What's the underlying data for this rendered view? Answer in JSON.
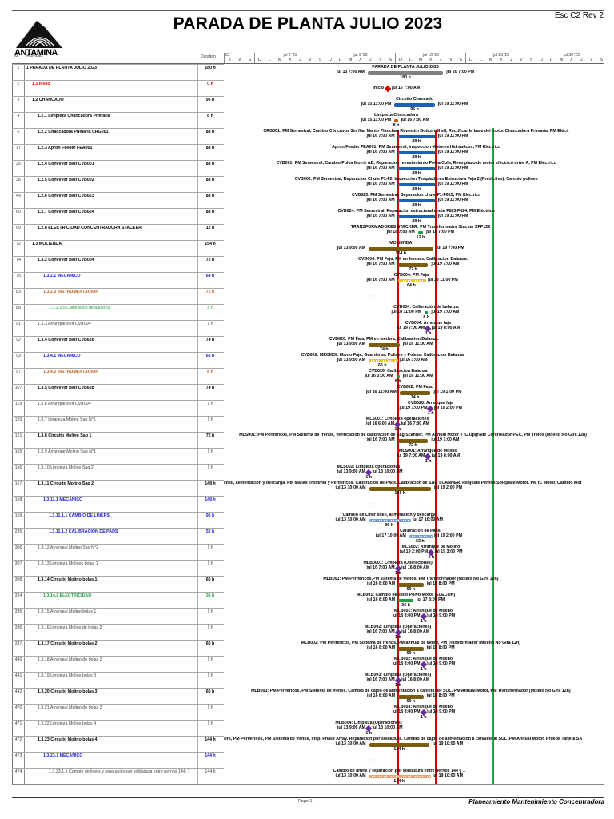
{
  "header": {
    "title": "PARADA DE PLANTA JULIO 2023",
    "revision": "Esc C2 Rev 2",
    "logo_text": "ANTAMINA"
  },
  "columns": {
    "id": "Id",
    "activity": "Actividad",
    "duration": "Duration"
  },
  "timescale": {
    "first_day": "jun 29",
    "groups": [
      {
        "label": "23",
        "days": [
          "J",
          "V",
          "S"
        ]
      },
      {
        "label": "jul 2 '23",
        "days": [
          "D",
          "L",
          "M",
          "X",
          "J",
          "V",
          "S"
        ]
      },
      {
        "label": "jul 9 '23",
        "days": [
          "D",
          "L",
          "M",
          "X",
          "J",
          "V",
          "S"
        ]
      },
      {
        "label": "jul 16 '23",
        "days": [
          "D",
          "L",
          "M",
          "X",
          "J",
          "V",
          "S"
        ]
      },
      {
        "label": "jul 23 '23",
        "days": [
          "D",
          "L",
          "M",
          "X",
          "J",
          "V",
          "S"
        ]
      },
      {
        "label": "jul 30 '23",
        "days": [
          "D",
          "L",
          "M",
          "X",
          "J",
          "V",
          "S"
        ]
      }
    ]
  },
  "colors": {
    "red": "#d40000",
    "blue": "#1f5fb0",
    "olive": "#7a5c10",
    "grey": "#808080",
    "green": "#20a040",
    "orange": "#c06020",
    "purple": "#6a2a9a",
    "yellow": "#f0c030",
    "light_blue": "#7aa0e0",
    "light_orange": "#f0a070"
  },
  "rows": [
    {
      "id": "1",
      "name": "1 PARADA DE PLANTA JULIO 2023",
      "duration": "180 h",
      "bold": true,
      "color": "#000",
      "indent": 0,
      "bar": {
        "label": "PARADA DE PLANTA JULIO 2023",
        "start": "jul 13 7:00 AM",
        "end": "jul 20 7:00 PM",
        "dur": "180 h",
        "kind": "summary",
        "color": "#808080"
      }
    },
    {
      "id": "2",
      "name": "1.1 Inicio",
      "duration": "0 h",
      "bold": true,
      "color": "#d40000",
      "indent": 1,
      "bar": {
        "label": "Inicio",
        "start": "jul 15 7:00 AM",
        "end": "",
        "dur": "",
        "kind": "milestone",
        "color": "#d40000"
      }
    },
    {
      "id": "3",
      "name": "1.2 CHANCADO",
      "duration": "96 h",
      "bold": true,
      "color": "#000",
      "indent": 1,
      "bar": {
        "label": "Circuito Chancado",
        "start": "jul 15 11:00 PM",
        "end": "jul 19 11:00 PM",
        "dur": "96 h",
        "kind": "summary",
        "color": "#1f5fb0"
      }
    },
    {
      "id": "4",
      "name": "1.2.1 Limpieza Chancadora Primaria",
      "duration": "8 h",
      "bold": true,
      "color": "#000",
      "indent": 2,
      "bar": {
        "label": "Limpieza Chancadora",
        "start": "jul 15 11:00 PM",
        "end": "jul 16 7:00 AM",
        "dur": "8 h",
        "kind": "task",
        "color": "#c06020"
      }
    },
    {
      "id": "6",
      "name": "1.2.2   Chancadora Primaria CRG001",
      "duration": "88 h",
      "bold": true,
      "color": "#000",
      "indent": 2,
      "bar": {
        "label": "CRG001: PM Semestral, Cambio Cóncavos 3er fila, Manto Planchas Revestim Bottom Shell, Rectificar la base del motor Chancadora Primaria. PM Eléctr",
        "start": "jul 16 7:00 AM",
        "end": "jul 19 11:00 PM",
        "dur": "88 h",
        "kind": "task",
        "color": "#1f5fb0"
      }
    },
    {
      "id": "17",
      "name": "1.2.3 Apron Feeder FEA001",
      "duration": "88 h",
      "bold": true,
      "color": "#000",
      "indent": 2,
      "bar": {
        "label": "Apron Feeder FEA001: PM Semestral, Inspeccion Motores Hidraulicos, PM Eléctrico",
        "start": "jul 16 7:00 AM",
        "end": "jul 19 11:00 PM",
        "dur": "88 h",
        "kind": "task",
        "color": "#1f5fb0"
      }
    },
    {
      "id": "25",
      "name": "1.2.4 Conveyor Belt CVB001",
      "duration": "88 h",
      "bold": true,
      "color": "#000",
      "indent": 2,
      "bar": {
        "label": "CVB001: PM Semestral,  Cambio Polea Motriz AB, Reparacion revestimiento Polea Cola, Reemplazo de motor eléctrico drive A, PM Eléctrico",
        "start": "jul 16 7:00 AM",
        "end": "jul 19 11:00 PM",
        "dur": "88 h",
        "kind": "task",
        "color": "#1f5fb0"
      }
    },
    {
      "id": "38",
      "name": "1.2.5 Conveyor Belt CVB002",
      "duration": "88 h",
      "bold": true,
      "color": "#000",
      "indent": 2,
      "bar": {
        "label": "CVB002: PM Semestral, Reparacion Chute F1-F2, Inspeccion Templadores Estructura Faja 2 (Predictivo), Cambio polines",
        "start": "jul 16 7:00 AM",
        "end": "jul 19 11:00 PM",
        "dur": "88 h",
        "kind": "task",
        "color": "#1f5fb0"
      }
    },
    {
      "id": "49",
      "name": "1.2.6 Conveyor Belt CVB623",
      "duration": "88 h",
      "bold": true,
      "color": "#000",
      "indent": 2,
      "bar": {
        "label": "CVB623: PM Semestral, Separacion chute F1-F623, PM Eléctrico",
        "start": "jul 16 7:00 AM",
        "end": "jul 19 11:00 PM",
        "dur": "88 h",
        "kind": "task",
        "color": "#1f5fb0"
      }
    },
    {
      "id": "60",
      "name": "1.2.7 Conveyor Belt CVB624",
      "duration": "88 h",
      "bold": true,
      "color": "#000",
      "indent": 2,
      "bar": {
        "label": "CVB624: PM Semestral, Reparacion estructural chute F623-F624, PM Eléctrico",
        "start": "jul 16 7:00 AM",
        "end": "jul 19 11:00 PM",
        "dur": "88 h",
        "kind": "task",
        "color": "#1f5fb0"
      }
    },
    {
      "id": "69",
      "name": "1.2.8 ELECTRICIDAD CONCENTRADORA STACKER",
      "duration": "12 h",
      "bold": true,
      "color": "#000",
      "indent": 2,
      "bar": {
        "label": "TRANSFORMADORES STACKER: PM Transformador Stacker XFP126",
        "start": "jul 18 7:00 AM",
        "end": "jul 18 7:00 PM",
        "dur": "12 h",
        "kind": "task",
        "color": "#20a040"
      }
    },
    {
      "id": "72",
      "name": "1.3 MOLIENDA",
      "duration": "154 h",
      "bold": true,
      "color": "#000",
      "indent": 1,
      "bar": {
        "label": "MOLIENDA",
        "start": "jul 13 9:00 AM",
        "end": "jul 19 7:00 PM",
        "dur": "154 h",
        "kind": "summary",
        "color": "#7a5c10"
      }
    },
    {
      "id": "74",
      "name": "1.3.2 Conveyor Belt CVB004",
      "duration": "72 h",
      "bold": true,
      "color": "#000",
      "indent": 2,
      "bar": {
        "label": "CVB004: PM Faja, PM en feeders, Calibracion Balanza.",
        "start": "jul 16 7:00 AM",
        "end": "jul 19 7:00 AM",
        "dur": "72 h",
        "kind": "summary",
        "color": "#7a5c10"
      }
    },
    {
      "id": "75",
      "name": "1.3.2.1 MECANICO",
      "duration": "64 h",
      "bold": true,
      "color": "#2020d0",
      "indent": 3,
      "bar": {
        "label": "CVB004: PM Faja",
        "start": "jul 16 7:00 AM",
        "end": "jul 18 11:00 PM",
        "dur": "64 h",
        "kind": "hatched",
        "color": "#f0c030"
      }
    },
    {
      "id": "83",
      "name": "1.3.2.3 INSTRUMENTACION",
      "duration": "72 h",
      "bold": true,
      "color": "#c06020",
      "indent": 3,
      "bar": null
    },
    {
      "id": "88",
      "name": "1.3.2.3.5 Calibración de balanza",
      "duration": "8 h",
      "bold": false,
      "color": "#20a040",
      "indent": 4,
      "bar": {
        "label": "CVB004: Calibración de balanza.",
        "start": "jul 18 11:00 PM",
        "end": "jul 19 7:00 AM",
        "dur": "8 h",
        "kind": "task",
        "color": "#20a040"
      }
    },
    {
      "id": "91",
      "name": "1.3.3 Arranque Belt CVB004",
      "duration": "1 h",
      "bold": false,
      "color": "#444",
      "indent": 2,
      "bar": {
        "label": "CVB004: Arranque faja",
        "start": "jul 19 7:00 AM",
        "end": "jul 19 8:00 AM",
        "dur": "1 h",
        "kind": "milestone",
        "color": "#6a2a9a"
      }
    },
    {
      "id": "92",
      "name": "1.3.4 Conveyor Belt CVB626",
      "duration": "74 h",
      "bold": true,
      "color": "#000",
      "indent": 2,
      "bar": {
        "label": "CVB626: PM Faja, PM en feeders, Calibracion Balanza.",
        "start": "jul 13 9:00 AM",
        "end": "jul 16 11:00 AM",
        "dur": "74 h",
        "kind": "summary",
        "color": "#7a5c10"
      }
    },
    {
      "id": "93",
      "name": "1.3.4.1 MECANICO",
      "duration": "66 h",
      "bold": true,
      "color": "#2020d0",
      "indent": 3,
      "bar": {
        "label": "CVB626: MECMOL Manto Faja, Guarderas, Polines y Poleas. Calibracion Balanza",
        "start": "jul 13 9:00 AM",
        "end": "jul 16 3:00 AM",
        "dur": "66 h",
        "kind": "hatched",
        "color": "#f0c030"
      }
    },
    {
      "id": "97",
      "name": "1.3.4.2 INSTRUMENTACION",
      "duration": "8 h",
      "bold": true,
      "color": "#c06020",
      "indent": 3,
      "bar": {
        "label": "CVB626: Calibracion Balanza",
        "start": "jul 16 3:00 AM",
        "end": "jul 16 11:00 AM",
        "dur": "8 h",
        "kind": "task",
        "color": "#20a040"
      }
    },
    {
      "id": "107",
      "name": "1.3.5 Conveyor Belt CVB628",
      "duration": "74 h",
      "bold": true,
      "color": "#000",
      "indent": 2,
      "bar": {
        "label": "CVB628: PM Faja.",
        "start": "jul 16 11:00 AM",
        "end": "jul 19 1:00 PM",
        "dur": "74 h",
        "kind": "summary",
        "color": "#7a5c10"
      }
    },
    {
      "id": "119",
      "name": "1.3.6 Arranque Belt CVB004",
      "duration": "1 h",
      "bold": false,
      "color": "#444",
      "indent": 2,
      "bar": {
        "label": "CVB628: Arranque faja",
        "start": "jul 19 1:00 PM",
        "end": "jul 19 2:00 PM",
        "dur": "1 h",
        "kind": "milestone",
        "color": "#6a2a9a"
      }
    },
    {
      "id": "120",
      "name": "1.3.7 Limpieza Molino Sag N°1",
      "duration": "1 h",
      "bold": false,
      "color": "#444",
      "indent": 2,
      "bar": {
        "label": "MLS001: Limpieza operaciones",
        "start": "jul 16 6:00 AM",
        "end": "jul 16 7:00 AM",
        "dur": "1 h",
        "kind": "milestone",
        "color": "#6a2a9a"
      }
    },
    {
      "id": "121",
      "name": "1.3.8 Circuito Molino Sag 1",
      "duration": "72 h",
      "bold": true,
      "color": "#000",
      "indent": 2,
      "bar": {
        "label": "MLS001: PM Perifericos, PM Sistema de frenos, Verificación de calibración de Sag Scanner. PM Annual Motor e IC.Upgrade Controlador PEC, PM Trafos (Molino No Gira 12h)",
        "start": "jul 16 7:00 AM",
        "end": "jul 19 7:00 AM",
        "dur": "72 h",
        "kind": "summary",
        "color": "#7a5c10"
      }
    },
    {
      "id": "165",
      "name": "1.3.9 Arranque Molino Sag N°1",
      "duration": "1 h",
      "bold": false,
      "color": "#444",
      "indent": 2,
      "bar": {
        "label": "MLS001: Arranque de Molino",
        "start": "jul 19 7:00 AM",
        "end": "jul 19 8:00 AM",
        "dur": "1 h",
        "kind": "milestone",
        "color": "#6a2a9a"
      }
    },
    {
      "id": "166",
      "name": "1.3.10 Limpieza Molino Sag 2",
      "duration": "1 h",
      "bold": false,
      "color": "#444",
      "indent": 2,
      "bar": {
        "label": "MLS002: Limpieza operaciones",
        "start": "jul 13 9:00 AM",
        "end": "jul 13 10:00 AM",
        "dur": "1 h",
        "kind": "milestone",
        "color": "#6a2a9a"
      }
    },
    {
      "id": "167",
      "name": "1.3.11 Circuito Molino Sag 2",
      "duration": "148 h",
      "bold": true,
      "color": "#000",
      "indent": 2,
      "bar": {
        "label": "rs shell, alimentacion y descarga. PM Mallas Trommel y Perifericos. Calibración de Pads. Calibración de SAG SCANNER. Reajuste Pernos Soleplate Motor. PM IC Motor. Cambio Mot",
        "start": "jul 13 10:00 AM",
        "end": "jul 19 2:00 PM",
        "dur": "148 h",
        "kind": "summary",
        "color": "#7a5c10"
      }
    },
    {
      "id": "168",
      "name": "1.3.11.1  MECANICO",
      "duration": "148 h",
      "bold": true,
      "color": "#2020d0",
      "indent": 3,
      "bar": null
    },
    {
      "id": "169",
      "name": "1.3.11.1.1 CAMBIO DE LINERS",
      "duration": "96 h",
      "bold": true,
      "color": "#2020d0",
      "indent": 4,
      "bar": {
        "label": "Cambio de Liner shell, alimetación y descarga",
        "start": "jul 13 10:00 AM",
        "end": "jul 17 10:00 AM",
        "dur": "96 h",
        "kind": "hatched",
        "color": "#7aa0e0"
      }
    },
    {
      "id": "235",
      "name": "1.3.11.1.2 CALIBRACION DE PADS",
      "duration": "52 h",
      "bold": true,
      "color": "#2020d0",
      "indent": 4,
      "bar": {
        "label": "Calibración de Pads",
        "start": "jul 17 10:00 AM",
        "end": "jul 19 2:00 PM",
        "dur": "52 h",
        "kind": "hatched",
        "color": "#7aa0e0"
      }
    },
    {
      "id": "306",
      "name": "1.3.12 Arranque Molino Sag N°2",
      "duration": "1 h",
      "bold": false,
      "color": "#444",
      "indent": 2,
      "bar": {
        "label": "MLS002: Arranque de Molino",
        "start": "jul 19 2:00 PM",
        "end": "jul 19 3:00 PM",
        "dur": "1 h",
        "kind": "milestone",
        "color": "#6a2a9a"
      }
    },
    {
      "id": "307",
      "name": "1.3.13 Limpieza Molinos bolas 1",
      "duration": "1 h",
      "bold": false,
      "color": "#444",
      "indent": 2,
      "bar": {
        "label": "MLB0001: Limpieza (Operaciones)",
        "start": "jul 16 7:00 AM",
        "end": "jul 16 8:00 AM",
        "dur": "1 h",
        "kind": "milestone",
        "color": "#6a2a9a"
      }
    },
    {
      "id": "308",
      "name": "1.3.14 Circuito Molino bolas 1",
      "duration": "60 h",
      "bold": true,
      "color": "#000",
      "indent": 2,
      "bar": {
        "label": "MLB001: PM Perifericos,PM sistema de frenos. PM Transformador (Molino No Gira 12h)",
        "start": "jul 16 8:00 AM",
        "end": "jul 18 8:00 PM",
        "dur": "60 h",
        "kind": "summary",
        "color": "#7a5c10"
      }
    },
    {
      "id": "324",
      "name": "1.3.14.2   ELECTRICIDAD",
      "duration": "36 h",
      "bold": true,
      "color": "#20a040",
      "indent": 3,
      "bar": {
        "label": "MLB001: Cambio de sello Polvo Motor (ELECON)",
        "start": "jul 16 8:00 AM",
        "end": "jul 17 8:00 PM",
        "dur": "36 h",
        "kind": "task",
        "color": "#20a040"
      }
    },
    {
      "id": "335",
      "name": "1.3.15 Arranque Molino bolas 1",
      "duration": "1 h",
      "bold": false,
      "color": "#444",
      "indent": 2,
      "bar": {
        "label": "MLB001: Arranque de Molino",
        "start": "jul 18 8:00 PM",
        "end": "jul 18 9:00 PM",
        "dur": "1 h",
        "kind": "milestone",
        "color": "#6a2a9a"
      }
    },
    {
      "id": "336",
      "name": "1.3.16 Limpieza Molino de bolas 2",
      "duration": "1 h",
      "bold": false,
      "color": "#444",
      "indent": 2,
      "bar": {
        "label": "MLB002: Limpieza (Operaciones)",
        "start": "jul 16 7:00 AM",
        "end": "jul 16 8:00 AM",
        "dur": "1 h",
        "kind": "milestone",
        "color": "#6a2a9a"
      }
    },
    {
      "id": "337",
      "name": "1.3.17 Circuito Molino bolas 2",
      "duration": "60 h",
      "bold": true,
      "color": "#000",
      "indent": 2,
      "bar": {
        "label": "MLB002: PM Perifericos, PM Sistema de frenos, PM annual de Motor, PM Transformador (Molino No Gira 12h)",
        "start": "jul 16 8:00 AM",
        "end": "jul 18 8:00 PM",
        "dur": "60 h",
        "kind": "summary",
        "color": "#7a5c10"
      }
    },
    {
      "id": "440",
      "name": "1.3.18 Arranque Molino de bolas 2",
      "duration": "1 h",
      "bold": false,
      "color": "#444",
      "indent": 2,
      "bar": {
        "label": "MLB002: Arranque de Molino",
        "start": "jul 18 8:00 PM",
        "end": "jul 18 9:00 PM",
        "dur": "1 h",
        "kind": "milestone",
        "color": "#6a2a9a"
      }
    },
    {
      "id": "441",
      "name": "1.3.19 Limpieza Molino bolas 3",
      "duration": "1 h",
      "bold": false,
      "color": "#444",
      "indent": 2,
      "bar": {
        "label": "MLB003: Limpieza (Operaciones)",
        "start": "jul 16 7:00 AM",
        "end": "jul 16 8:00 AM",
        "dur": "1 h",
        "kind": "milestone",
        "color": "#6a2a9a"
      }
    },
    {
      "id": "442",
      "name": "1.3.20 Circuito Molino bolas 3",
      "duration": "60 h",
      "bold": true,
      "color": "#000",
      "indent": 2,
      "bar": {
        "label": "MLB003: PM Perifericos, PM Sistema de frenos. Cambio de cajón de alimentación a canleta del SUL. PM Annual Motor, PM Transformador (Molino No Gira 12h)",
        "start": "jul 16 8:00 AM",
        "end": "jul 18 8:00 PM",
        "dur": "60 h",
        "kind": "summary",
        "color": "#7a5c10"
      }
    },
    {
      "id": "470",
      "name": "1.3.21 Arranque Molino de bolas 3",
      "duration": "1 h",
      "bold": false,
      "color": "#444",
      "indent": 2,
      "bar": {
        "label": "MLB003: Arranque de Molino",
        "start": "jul 18 8:00 PM",
        "end": "jul 18 9:00 PM",
        "dur": "1 h",
        "kind": "milestone",
        "color": "#6a2a9a"
      }
    },
    {
      "id": "471",
      "name": "1.3.22 Limpieza Molino bolas 4",
      "duration": "1 h",
      "bold": false,
      "color": "#444",
      "indent": 2,
      "bar": {
        "label": "MLB004: Limpieza (Operaciones)",
        "start": "jul 13 9:00 AM",
        "end": "jul 13 10:00 AM",
        "dur": "1 h",
        "kind": "milestone",
        "color": "#6a2a9a"
      }
    },
    {
      "id": "472",
      "name": "1.3.23 Circuito Molino bolas 4",
      "duration": "144 h",
      "bold": true,
      "color": "#000",
      "indent": 2,
      "bar": {
        "label": "e liners, PM Perifericos, PM Sistema de frenos, Insp. Phase Array. Reparación por soldadura. Cambio de cajón de alimentación a canaleta al SUL .PM Annual Motor. Prueba Tarjeta SA",
        "start": "jul 13 10:00 AM",
        "end": "jul 19 10:00 AM",
        "dur": "144 h",
        "kind": "summary",
        "color": "#7a5c10"
      }
    },
    {
      "id": "473",
      "name": "1.3.23.1       MECANICO",
      "duration": "144 h",
      "bold": true,
      "color": "#2020d0",
      "indent": 3,
      "bar": null
    },
    {
      "id": "474",
      "name": "1.3.23.1.1 Cambio de liners y reparación por soldadura entre pernos 144, 1",
      "duration": "144 h",
      "bold": false,
      "color": "#444",
      "indent": 4,
      "bar": {
        "label": "Cambio de liners y reparación por soldadura entre pernos 144 y 1",
        "start": "jul 13 10:00 AM",
        "end": "jul 19 10:00 AM",
        "dur": "144 h",
        "kind": "hatched",
        "color": "#f0a070"
      }
    }
  ],
  "footer": {
    "page": "Page 1",
    "title": "Planeamiento Mantenimiento Concentradora"
  }
}
